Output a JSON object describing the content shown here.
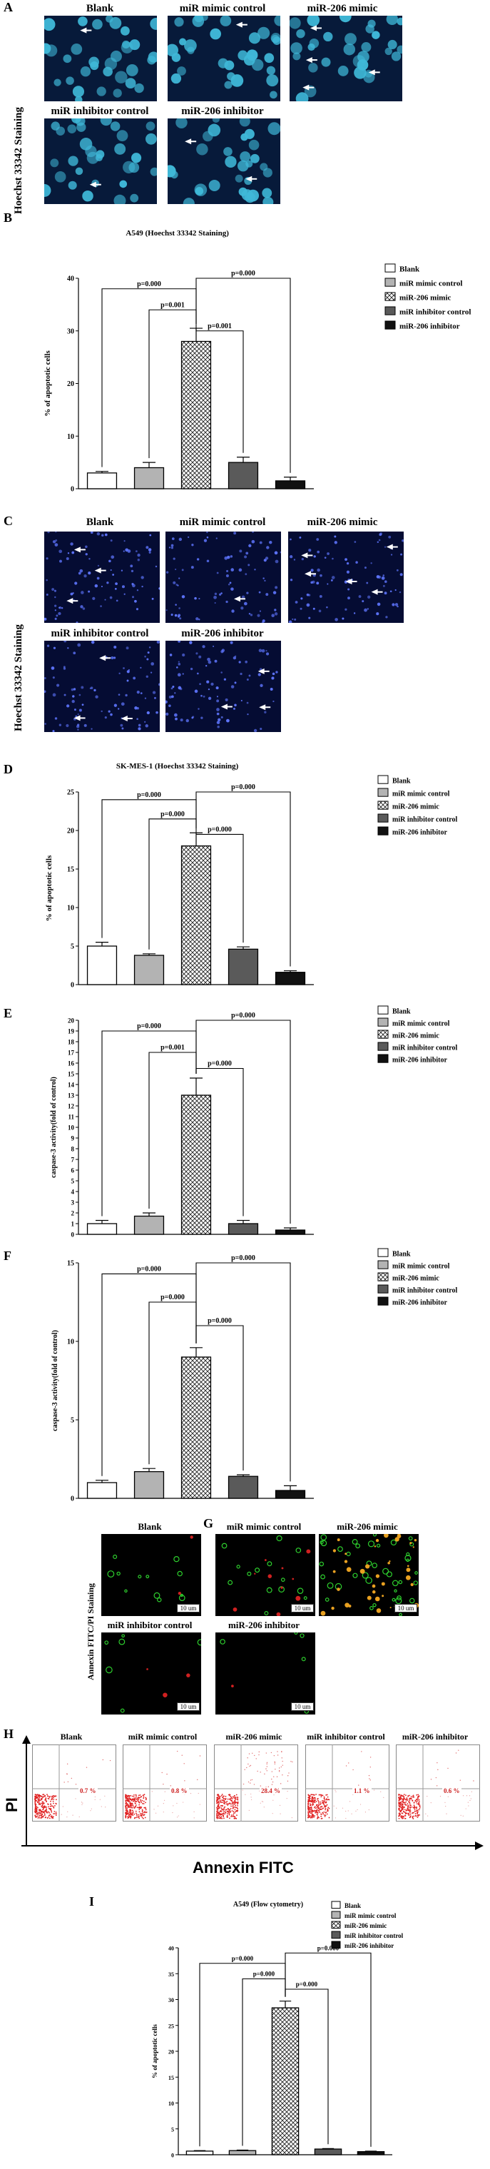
{
  "panel_letters": {
    "A": "A",
    "B": "B",
    "C": "C",
    "D": "D",
    "E": "E",
    "F": "F",
    "G": "G",
    "H": "H",
    "I": "I"
  },
  "groups": [
    "Blank",
    "miR mimic control",
    "miR-206 mimic",
    "miR inhibitor control",
    "miR-206 inhibitor"
  ],
  "panelA": {
    "side_label": "Hoechst 33342 Staining",
    "titles": [
      "Blank",
      "miR mimic control",
      "miR-206 mimic",
      "miR inhibitor control",
      "miR-206 inhibitor"
    ],
    "color_bg": "#071a3a",
    "color_nuclei": "#3fb8d8"
  },
  "panelC": {
    "side_label": "Hoechst 33342 Staining",
    "titles": [
      "Blank",
      "miR mimic control",
      "miR-206 mimic",
      "miR inhibitor control",
      "miR-206 inhibitor"
    ],
    "color_bg": "#050c33"
  },
  "panelG": {
    "side_label": "Annexin FITC/PI Staining",
    "titles": [
      "Blank",
      "miR mimic control",
      "miR-206 mimic",
      "miR inhibitor control",
      "miR-206 inhibitor"
    ],
    "scale": "10 um"
  },
  "panelH": {
    "titles": [
      "Blank",
      "miR mimic control",
      "miR-206 mimic",
      "miR inhibitor control",
      "miR-206 inhibitor"
    ],
    "percentages": [
      "0.7 %",
      "0.8 %",
      "28.4 %",
      "1.1 %",
      "0.6 %"
    ],
    "y_axis": "PI",
    "x_axis": "Annexin FITC"
  },
  "chart_data": [
    {
      "id": "B",
      "type": "bar",
      "title": "A549 (Hoechst 33342 Staining)",
      "ylabel": "% of apoptotic cells",
      "ylim": [
        0,
        40
      ],
      "yticks": [
        0,
        10,
        20,
        30,
        40
      ],
      "categories": [
        "Blank",
        "miR mimic control",
        "miR-206 mimic",
        "miR inhibitor control",
        "miR-206 inhibitor"
      ],
      "values": [
        3.0,
        4.0,
        28.0,
        5.0,
        1.5
      ],
      "errors": [
        0.3,
        1.0,
        2.5,
        1.0,
        0.7
      ],
      "comparisons": [
        {
          "from": 0,
          "to": 2,
          "label": "p=0.000",
          "level": 38
        },
        {
          "from": 2,
          "to": 4,
          "label": "p=0.000",
          "level": 40
        },
        {
          "from": 1,
          "to": 2,
          "label": "p=0.001",
          "level": 34
        },
        {
          "from": 2,
          "to": 3,
          "label": "p=0.001",
          "level": 30
        }
      ]
    },
    {
      "id": "D",
      "type": "bar",
      "title": "SK-MES-1 (Hoechst 33342 Staining)",
      "ylabel": "% of apoptotic cells",
      "ylim": [
        0,
        25
      ],
      "yticks": [
        0,
        5,
        10,
        15,
        20,
        25
      ],
      "categories": [
        "Blank",
        "miR mimic control",
        "miR-206 mimic",
        "miR inhibitor control",
        "miR-206 inhibitor"
      ],
      "values": [
        5.0,
        3.8,
        18.0,
        4.6,
        1.6
      ],
      "errors": [
        0.5,
        0.2,
        1.7,
        0.3,
        0.2
      ],
      "comparisons": [
        {
          "from": 0,
          "to": 2,
          "label": "p=0.000",
          "level": 24
        },
        {
          "from": 2,
          "to": 4,
          "label": "p=0.000",
          "level": 25
        },
        {
          "from": 1,
          "to": 2,
          "label": "p=0.000",
          "level": 21.5
        },
        {
          "from": 2,
          "to": 3,
          "label": "p=0.000",
          "level": 19.5
        }
      ]
    },
    {
      "id": "E",
      "type": "bar",
      "title": "",
      "ylabel": "caspase-3 activity(fold of control)",
      "ylim": [
        0,
        20
      ],
      "yticks": [
        0,
        1,
        2,
        3,
        4,
        5,
        6,
        7,
        8,
        9,
        10,
        11,
        12,
        13,
        14,
        15,
        16,
        17,
        18,
        19,
        20
      ],
      "categories": [
        "Blank",
        "miR mimic control",
        "miR-206 mimic",
        "miR inhibitor control",
        "miR-206 inhibitor"
      ],
      "values": [
        1.0,
        1.7,
        13.0,
        1.0,
        0.4
      ],
      "errors": [
        0.3,
        0.3,
        1.6,
        0.3,
        0.2
      ],
      "comparisons": [
        {
          "from": 0,
          "to": 2,
          "label": "p=0.000",
          "level": 19
        },
        {
          "from": 2,
          "to": 4,
          "label": "p=0.000",
          "level": 20
        },
        {
          "from": 1,
          "to": 2,
          "label": "p=0.001",
          "level": 17
        },
        {
          "from": 2,
          "to": 3,
          "label": "p=0.000",
          "level": 15.5
        }
      ]
    },
    {
      "id": "F",
      "type": "bar",
      "title": "",
      "ylabel": "caspase-3 activity(fold of control)",
      "ylim": [
        0,
        15
      ],
      "yticks": [
        0,
        5,
        10,
        15
      ],
      "categories": [
        "Blank",
        "miR mimic control",
        "miR-206 mimic",
        "miR inhibitor control",
        "miR-206 inhibitor"
      ],
      "values": [
        1.0,
        1.7,
        9.0,
        1.4,
        0.5
      ],
      "errors": [
        0.15,
        0.2,
        0.6,
        0.1,
        0.3
      ],
      "comparisons": [
        {
          "from": 0,
          "to": 2,
          "label": "p=0.000",
          "level": 14.3
        },
        {
          "from": 2,
          "to": 4,
          "label": "p=0.000",
          "level": 15
        },
        {
          "from": 1,
          "to": 2,
          "label": "p=0.000",
          "level": 12.5
        },
        {
          "from": 2,
          "to": 3,
          "label": "p=0.000",
          "level": 11
        }
      ]
    },
    {
      "id": "I",
      "type": "bar",
      "title": "A549 (Flow cytometry)",
      "ylabel": "% of apoptotic cells",
      "ylim": [
        0,
        40
      ],
      "yticks": [
        0,
        5,
        10,
        15,
        20,
        25,
        30,
        35,
        40
      ],
      "categories": [
        "Blank",
        "miR mimic control",
        "miR-206 mimic",
        "miR inhibitor control",
        "miR-206 inhibitor"
      ],
      "values": [
        0.7,
        0.8,
        28.4,
        1.1,
        0.6
      ],
      "errors": [
        0.1,
        0.1,
        1.3,
        0.1,
        0.1
      ],
      "comparisons": [
        {
          "from": 0,
          "to": 2,
          "label": "p=0.000",
          "level": 37
        },
        {
          "from": 2,
          "to": 4,
          "label": "p=0.000",
          "level": 39
        },
        {
          "from": 1,
          "to": 2,
          "label": "p=0.000",
          "level": 34
        },
        {
          "from": 2,
          "to": 3,
          "label": "p=0.000",
          "level": 32
        }
      ]
    }
  ],
  "colors": {
    "bar_fills": [
      "#ffffff",
      "#b3b3b3",
      "hatch",
      "#5a5a5a",
      "#111111"
    ],
    "dot_plot_red": "#e02020"
  }
}
